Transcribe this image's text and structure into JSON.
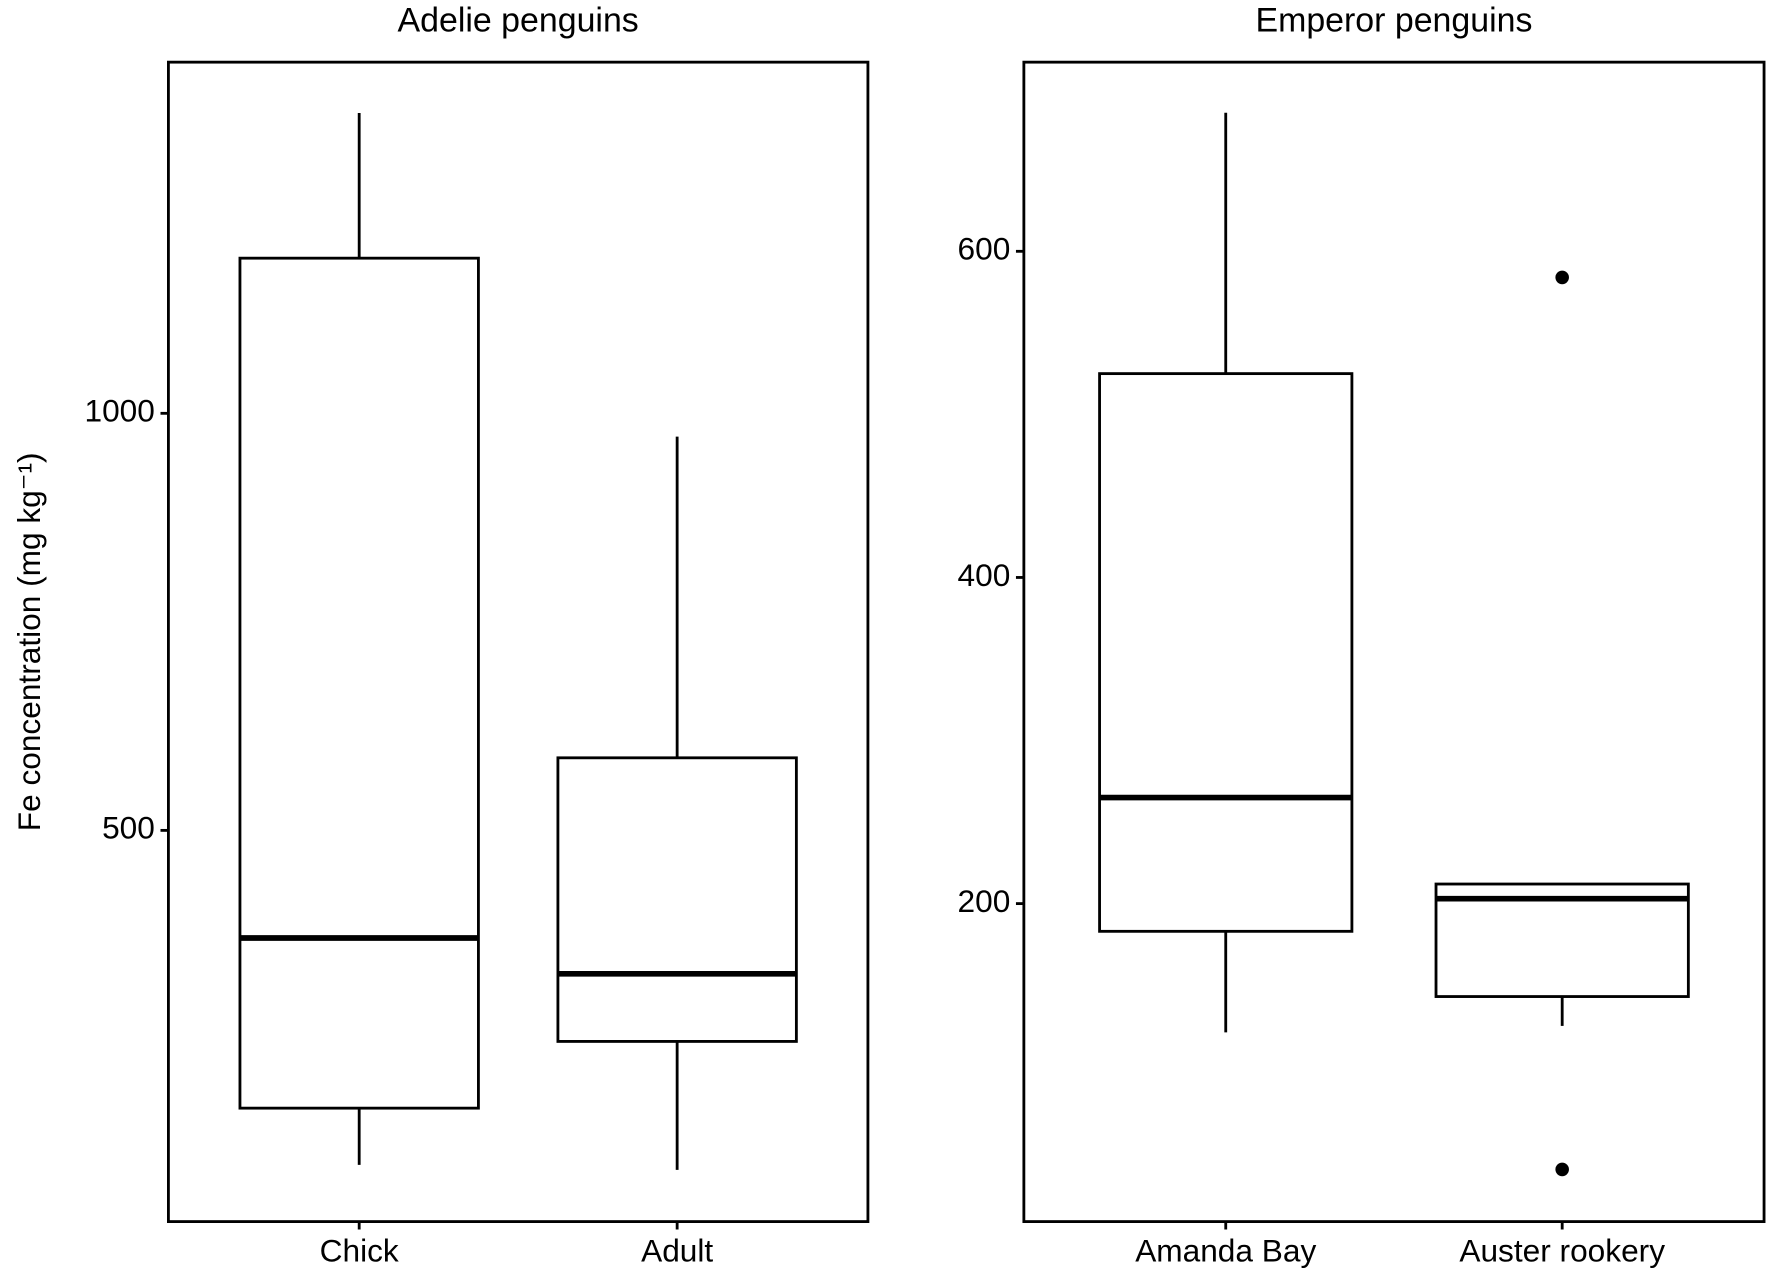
{
  "chart_data": [
    {
      "type": "box",
      "title": "Adelie penguins",
      "y_label": "Fe concentration (mg kg⁻¹)",
      "categories": [
        "Chick",
        "Adult"
      ],
      "boxes": [
        {
          "whislo": 99,
          "q1": 167,
          "med": 371,
          "q3": 1186,
          "whishi": 1360,
          "fliers": []
        },
        {
          "whislo": 93,
          "q1": 247,
          "med": 328,
          "q3": 587,
          "whishi": 972,
          "fliers": []
        }
      ],
      "ylim": [
        31,
        1421
      ],
      "yticks": [
        500,
        1000
      ],
      "color": "#000000"
    },
    {
      "type": "box",
      "title": "Emperor penguins",
      "categories": [
        "Amanda Bay",
        "Auster rookery"
      ],
      "boxes": [
        {
          "whislo": 121,
          "q1": 183,
          "med": 265,
          "q3": 525,
          "whishi": 685,
          "fliers": []
        },
        {
          "whislo": 125,
          "q1": 143,
          "med": 203,
          "q3": 212,
          "whishi": 212,
          "fliers": [
            584,
            37
          ]
        }
      ],
      "ylim": [
        5,
        716
      ],
      "yticks": [
        200,
        400,
        600
      ],
      "color": "#000000"
    }
  ]
}
